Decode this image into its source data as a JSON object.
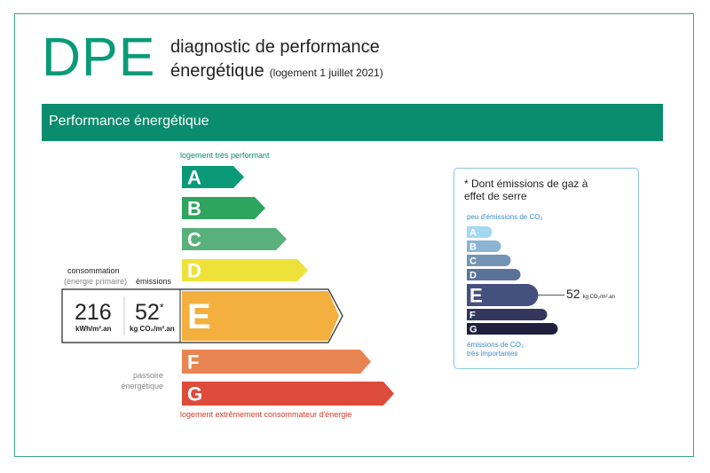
{
  "header": {
    "logo": "DPE",
    "title_line1": "diagnostic de performance",
    "title_line2": "énergétique",
    "title_date": "(logement 1 juillet 2021)"
  },
  "banner": {
    "label": "Performance énergétique"
  },
  "energy_scale": {
    "top_label": "logement très performant",
    "bottom_label": "logement extrêmement consommateur d'énergie",
    "classes": [
      {
        "letter": "A",
        "color": "#0a9a78"
      },
      {
        "letter": "B",
        "color": "#2ea45e"
      },
      {
        "letter": "C",
        "color": "#58b07a"
      },
      {
        "letter": "D",
        "color": "#eee23a"
      },
      {
        "letter": "E",
        "color": "#f3b03f"
      },
      {
        "letter": "F",
        "color": "#e98552"
      },
      {
        "letter": "G",
        "color": "#dd4b3a"
      }
    ],
    "active_class": "E"
  },
  "consumption": {
    "heading": "consommation",
    "sub": "(énergie primaire)",
    "value": "216",
    "unit": "kWh/m².an"
  },
  "emissions": {
    "heading": "émissions",
    "value": "52",
    "marker": "*",
    "unit": "kg CO₂/m².an"
  },
  "passoire": {
    "line1": "passoire",
    "line2": "énergétique"
  },
  "ges": {
    "title": "* Dont émissions de gaz à effet de serre",
    "top_label": "peu d'émissions de CO₂",
    "bottom_line1": "émissions de CO₂",
    "bottom_line2": "très importantes",
    "classes": [
      {
        "letter": "A",
        "color": "#a4d8f0"
      },
      {
        "letter": "B",
        "color": "#8cb4d4"
      },
      {
        "letter": "C",
        "color": "#7494b4"
      },
      {
        "letter": "D",
        "color": "#5a7298"
      },
      {
        "letter": "E",
        "color": "#44507e"
      },
      {
        "letter": "F",
        "color": "#33375e"
      },
      {
        "letter": "G",
        "color": "#221f3e"
      }
    ],
    "active_class": "E",
    "value": "52",
    "unit": "kg CO₂/m².an"
  }
}
